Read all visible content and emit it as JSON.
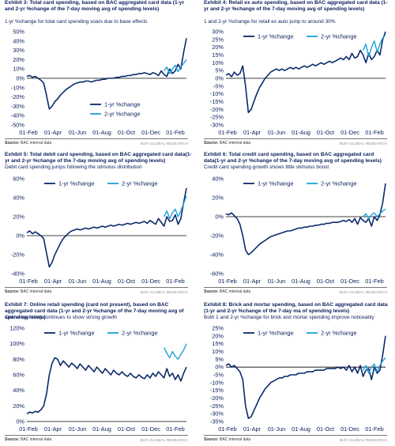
{
  "source_label": "Source:",
  "source_text": "BAC internal data",
  "brand": "BofA GLOBAL RESEARCH",
  "colors": {
    "series1": "#0a2a6c",
    "series2": "#1ea1db",
    "text": "#0a1f5c"
  },
  "chart_data": [
    {
      "type": "line",
      "title": "Exhibit 3: Total card spending, based on BAC aggregated card data (1-yr and 2-yr %change of the 7-day moving avg of spending levels)",
      "subtitle": "1-yr %change for total card spending soars due to base effects",
      "xlabel": "",
      "ylabel": "",
      "x_ticks": [
        "01-Feb",
        "01-Apr",
        "01-Jun",
        "01-Aug",
        "01-Oct",
        "01-Dec",
        "01-Feb"
      ],
      "y_ticks": [
        50,
        40,
        30,
        20,
        10,
        0,
        -10,
        -20,
        -30,
        -40,
        -50
      ],
      "ylim": [
        -50,
        50
      ],
      "legend": "bottom-center",
      "series": [
        {
          "name": "1-yr %change",
          "values": [
            2,
            3,
            1,
            2,
            0,
            -2,
            -5,
            -18,
            -33,
            -30,
            -25,
            -22,
            -18,
            -15,
            -12,
            -10,
            -8,
            -6,
            -5,
            -4,
            -4,
            -3,
            -3,
            -4,
            -3,
            -2,
            -2,
            -1,
            -1,
            0,
            0,
            0,
            1,
            1,
            2,
            2,
            3,
            3,
            4,
            4,
            5,
            5,
            6,
            5,
            4,
            6,
            5,
            3,
            8,
            4,
            2,
            10,
            5,
            8,
            15,
            10,
            28,
            43
          ]
        },
        {
          "name": "2-yr %change",
          "values": [
            null,
            null,
            null,
            null,
            null,
            null,
            null,
            null,
            null,
            null,
            null,
            null,
            null,
            null,
            null,
            null,
            null,
            null,
            null,
            null,
            null,
            null,
            null,
            null,
            null,
            null,
            null,
            null,
            null,
            null,
            null,
            null,
            null,
            null,
            null,
            null,
            null,
            null,
            null,
            null,
            null,
            null,
            null,
            null,
            null,
            null,
            null,
            null,
            null,
            8,
            12,
            5,
            10,
            14,
            7,
            12,
            16,
            20
          ]
        }
      ]
    },
    {
      "type": "line",
      "title": "Exhibit 4: Retail ex auto spending, based on BAC aggregated card data (1-yr and 2-yr %change of the 7-day moving avg of spending levels)",
      "subtitle": "1 and 2-yr %change for retail ex auto jump to around 30%",
      "xlabel": "",
      "ylabel": "",
      "x_ticks": [
        "01-Feb",
        "01-Apr",
        "01-Jun",
        "01-Aug",
        "01-Oct",
        "01-Dec",
        "01-Feb"
      ],
      "y_ticks": [
        30,
        25,
        20,
        15,
        10,
        5,
        0,
        -5,
        -10,
        -15,
        -20,
        -25,
        -30
      ],
      "ylim": [
        -30,
        30
      ],
      "legend": "top-center",
      "series": [
        {
          "name": "1-yr %change",
          "values": [
            2,
            3,
            1,
            4,
            2,
            3,
            8,
            -5,
            -22,
            -20,
            -15,
            -10,
            -6,
            -3,
            0,
            2,
            4,
            5,
            6,
            5,
            6,
            5,
            6,
            7,
            6,
            7,
            6,
            7,
            8,
            7,
            8,
            9,
            8,
            9,
            10,
            9,
            10,
            11,
            10,
            11,
            12,
            13,
            12,
            14,
            12,
            16,
            13,
            14,
            18,
            15,
            10,
            16,
            12,
            14,
            18,
            15,
            25,
            30
          ]
        },
        {
          "name": "2-yr %change",
          "values": [
            null,
            null,
            null,
            null,
            null,
            null,
            null,
            null,
            null,
            null,
            null,
            null,
            null,
            null,
            null,
            null,
            null,
            null,
            null,
            null,
            null,
            null,
            null,
            null,
            null,
            null,
            null,
            null,
            null,
            null,
            null,
            null,
            null,
            null,
            null,
            null,
            null,
            null,
            null,
            null,
            null,
            null,
            null,
            null,
            null,
            null,
            null,
            null,
            null,
            18,
            22,
            14,
            20,
            24,
            17,
            22,
            26,
            28
          ]
        }
      ]
    },
    {
      "type": "line",
      "title": "Exhibit 5: Total debit card spending, based on BAC aggregated card data(1-yr and 2-yr %change of the 7-day moving avg of spending levels)",
      "subtitle": "Debit card spending jumps following the stimulus distribution",
      "xlabel": "",
      "ylabel": "",
      "x_ticks": [
        "01-Feb",
        "01-Apr",
        "01-Jun",
        "01-Aug",
        "01-Oct",
        "01-Dec",
        "01-Feb"
      ],
      "y_ticks": [
        60,
        40,
        20,
        0,
        -20,
        -40
      ],
      "ylim": [
        -40,
        60
      ],
      "legend": "top-center",
      "series": [
        {
          "name": "1-yr %change",
          "values": [
            3,
            5,
            2,
            4,
            2,
            0,
            -3,
            -18,
            -33,
            -28,
            -20,
            -14,
            -8,
            -3,
            0,
            3,
            5,
            6,
            7,
            6,
            7,
            8,
            7,
            8,
            9,
            8,
            9,
            10,
            9,
            10,
            11,
            10,
            11,
            12,
            11,
            12,
            13,
            12,
            13,
            14,
            13,
            14,
            15,
            13,
            16,
            14,
            12,
            18,
            14,
            10,
            20,
            15,
            16,
            22,
            12,
            18,
            35,
            50
          ]
        },
        {
          "name": "2-yr %change",
          "values": [
            null,
            null,
            null,
            null,
            null,
            null,
            null,
            null,
            null,
            null,
            null,
            null,
            null,
            null,
            null,
            null,
            null,
            null,
            null,
            null,
            null,
            null,
            null,
            null,
            null,
            null,
            null,
            null,
            null,
            null,
            null,
            null,
            null,
            null,
            null,
            null,
            null,
            null,
            null,
            null,
            null,
            null,
            null,
            null,
            null,
            null,
            null,
            null,
            null,
            20,
            26,
            18,
            24,
            28,
            20,
            26,
            34,
            42
          ]
        }
      ]
    },
    {
      "type": "line",
      "title": "Exhibit 6: Total credit card spending, based on BAC aggregated card data(1-yr and 2-yr %change of the 7-day moving avg of spending levels)",
      "subtitle": "Credit card spending growth shows little stimulus boost",
      "xlabel": "",
      "ylabel": "",
      "x_ticks": [
        "01-Feb",
        "01-Apr",
        "01-Jun",
        "01-Aug",
        "01-Oct",
        "01-Dec",
        "01-Feb"
      ],
      "y_ticks": [
        40,
        20,
        0,
        -20,
        -40,
        -60
      ],
      "ylim": [
        -60,
        40
      ],
      "legend": "top-center",
      "series": [
        {
          "name": "1-yr %change",
          "values": [
            3,
            2,
            4,
            1,
            -2,
            -8,
            -20,
            -35,
            -40,
            -38,
            -35,
            -32,
            -29,
            -27,
            -25,
            -23,
            -21,
            -20,
            -19,
            -18,
            -17,
            -16,
            -15,
            -15,
            -14,
            -13,
            -12,
            -12,
            -11,
            -11,
            -10,
            -10,
            -9,
            -9,
            -8,
            -8,
            -7,
            -7,
            -6,
            -6,
            -6,
            -5,
            -4,
            -5,
            -3,
            -6,
            -2,
            -8,
            -1,
            -4,
            -6,
            -2,
            -10,
            0,
            -4,
            2,
            15,
            35
          ]
        },
        {
          "name": "2-yr %change",
          "values": [
            null,
            null,
            null,
            null,
            null,
            null,
            null,
            null,
            null,
            null,
            null,
            null,
            null,
            null,
            null,
            null,
            null,
            null,
            null,
            null,
            null,
            null,
            null,
            null,
            null,
            null,
            null,
            null,
            null,
            null,
            null,
            null,
            null,
            null,
            null,
            null,
            null,
            null,
            null,
            null,
            null,
            null,
            null,
            null,
            null,
            null,
            null,
            null,
            null,
            0,
            3,
            -2,
            2,
            4,
            0,
            3,
            6,
            8
          ]
        }
      ]
    },
    {
      "type": "line",
      "title": "Exhibit 7: Online retail spending (card not present), based on BAC aggregated card data (1-yr and 2-yr %change of the 7-day moving avg of spending levels)",
      "subtitle": "Online spending continues to show strong growth",
      "xlabel": "",
      "ylabel": "",
      "x_ticks": [
        "01-Feb",
        "01-Apr",
        "01-Jun",
        "01-Aug",
        "01-Oct",
        "01-Dec",
        "01-Feb"
      ],
      "y_ticks": [
        120,
        100,
        80,
        60,
        40,
        20,
        0
      ],
      "ylim": [
        0,
        120
      ],
      "legend": "top-center",
      "series": [
        {
          "name": "1-yr %change",
          "values": [
            10,
            12,
            11,
            13,
            12,
            15,
            20,
            35,
            60,
            75,
            82,
            80,
            72,
            78,
            74,
            70,
            75,
            72,
            68,
            74,
            70,
            66,
            72,
            68,
            64,
            70,
            66,
            62,
            68,
            64,
            60,
            66,
            62,
            60,
            64,
            60,
            58,
            62,
            58,
            56,
            60,
            57,
            55,
            60,
            56,
            62,
            58,
            64,
            60,
            56,
            68,
            58,
            62,
            54,
            60,
            52,
            62,
            70
          ]
        },
        {
          "name": "2-yr %change",
          "values": [
            null,
            null,
            null,
            null,
            null,
            null,
            null,
            null,
            null,
            null,
            null,
            null,
            null,
            null,
            null,
            null,
            null,
            null,
            null,
            null,
            null,
            null,
            null,
            null,
            null,
            null,
            null,
            null,
            null,
            null,
            null,
            null,
            null,
            null,
            null,
            null,
            null,
            null,
            null,
            null,
            null,
            null,
            null,
            null,
            null,
            null,
            null,
            null,
            null,
            95,
            88,
            82,
            90,
            84,
            80,
            86,
            92,
            100
          ]
        }
      ]
    },
    {
      "type": "line",
      "title": "Exhibit 8: Brick and mortar spending, based on BAC aggregated card data (1-yr and 2-yr %change of the 7-day ma of spending levels)",
      "subtitle": "Both 1 and 2-yr %change for brick and mortar spending improve noticeably",
      "xlabel": "",
      "ylabel": "",
      "x_ticks": [
        "01-Feb",
        "01-Apr",
        "01-Jun",
        "01-Aug",
        "01-Oct",
        "01-Dec",
        "01-Feb"
      ],
      "y_ticks": [
        25,
        20,
        15,
        10,
        5,
        0,
        -5,
        -10,
        -15,
        -20,
        -25,
        -30,
        -35
      ],
      "ylim": [
        -35,
        25
      ],
      "legend": "top-center",
      "series": [
        {
          "name": "1-yr %change",
          "values": [
            1,
            2,
            0,
            1,
            -1,
            -3,
            -8,
            -25,
            -33,
            -32,
            -28,
            -24,
            -20,
            -17,
            -14,
            -12,
            -10,
            -9,
            -8,
            -7,
            -7,
            -6,
            -6,
            -5,
            -5,
            -5,
            -4,
            -4,
            -4,
            -3,
            -3,
            -3,
            -2,
            -2,
            -2,
            -2,
            -1,
            -1,
            -1,
            -1,
            0,
            -1,
            0,
            -2,
            1,
            -3,
            0,
            -4,
            1,
            -6,
            -2,
            -1,
            -8,
            0,
            -4,
            -2,
            8,
            20
          ]
        },
        {
          "name": "2-yr %change",
          "values": [
            null,
            null,
            null,
            null,
            null,
            null,
            null,
            null,
            null,
            null,
            null,
            null,
            null,
            null,
            null,
            null,
            null,
            null,
            null,
            null,
            null,
            null,
            null,
            null,
            null,
            null,
            null,
            null,
            null,
            null,
            null,
            null,
            null,
            null,
            null,
            null,
            null,
            null,
            null,
            null,
            null,
            null,
            null,
            null,
            null,
            null,
            null,
            null,
            null,
            -2,
            1,
            -4,
            0,
            2,
            -3,
            1,
            4,
            6
          ]
        }
      ]
    }
  ]
}
